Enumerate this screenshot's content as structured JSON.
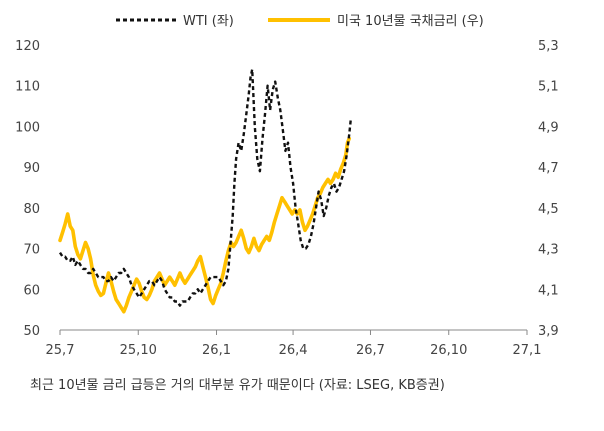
{
  "caption": "최근 10년물 금리 급등은 거의 대부분 유가 때문이다 (자료: LSEG, KB증권)",
  "chart_data": {
    "type": "line",
    "x_ticks": [
      "25,7",
      "25,10",
      "26,1",
      "26,4",
      "26,7",
      "26,10",
      "27,1"
    ],
    "xlim": [
      "25,7",
      "27,1"
    ],
    "y_left": {
      "ticks": [
        "50",
        "60",
        "70",
        "80",
        "90",
        "100",
        "110",
        "120"
      ],
      "ylim": [
        50,
        120
      ]
    },
    "y_right": {
      "ticks": [
        "3,9",
        "4,1",
        "4,3",
        "4,5",
        "4,7",
        "4,9",
        "5,1",
        "5,3"
      ],
      "ylim": [
        3.9,
        5.3
      ]
    },
    "legend_position": "top",
    "grid": false,
    "series": [
      {
        "name": "WTI (좌)",
        "axis": "left",
        "color": "#111111",
        "style": "dashed",
        "points": [
          [
            0,
            69
          ],
          [
            3,
            68
          ],
          [
            6,
            68
          ],
          [
            9,
            67
          ],
          [
            12,
            67
          ],
          [
            15,
            68
          ],
          [
            18,
            66
          ],
          [
            21,
            67
          ],
          [
            24,
            66
          ],
          [
            27,
            65
          ],
          [
            30,
            65
          ],
          [
            33,
            64
          ],
          [
            36,
            64
          ],
          [
            39,
            65
          ],
          [
            42,
            64
          ],
          [
            45,
            63
          ],
          [
            48,
            63
          ],
          [
            51,
            63
          ],
          [
            54,
            62
          ],
          [
            57,
            62
          ],
          [
            60,
            63
          ],
          [
            63,
            62
          ],
          [
            66,
            63
          ],
          [
            69,
            64
          ],
          [
            72,
            64
          ],
          [
            75,
            65
          ],
          [
            78,
            64
          ],
          [
            81,
            63
          ],
          [
            84,
            61
          ],
          [
            87,
            60
          ],
          [
            90,
            59
          ],
          [
            93,
            58
          ],
          [
            96,
            59
          ],
          [
            99,
            60
          ],
          [
            102,
            61
          ],
          [
            105,
            62
          ],
          [
            108,
            62
          ],
          [
            111,
            61
          ],
          [
            114,
            62
          ],
          [
            117,
            63
          ],
          [
            120,
            62
          ],
          [
            123,
            60
          ],
          [
            126,
            59
          ],
          [
            129,
            58
          ],
          [
            132,
            58
          ],
          [
            135,
            57
          ],
          [
            138,
            57
          ],
          [
            141,
            56
          ],
          [
            144,
            57
          ],
          [
            147,
            57
          ],
          [
            150,
            57
          ],
          [
            153,
            58
          ],
          [
            156,
            59
          ],
          [
            159,
            59
          ],
          [
            162,
            60
          ],
          [
            165,
            59
          ],
          [
            168,
            60
          ],
          [
            171,
            61
          ],
          [
            174,
            62
          ],
          [
            177,
            63
          ],
          [
            180,
            63
          ],
          [
            183,
            63
          ],
          [
            186,
            63
          ],
          [
            189,
            62
          ],
          [
            192,
            61
          ],
          [
            195,
            62
          ],
          [
            198,
            65
          ],
          [
            200,
            70
          ],
          [
            203,
            78
          ],
          [
            205,
            86
          ],
          [
            207,
            92
          ],
          [
            210,
            96
          ],
          [
            213,
            94
          ],
          [
            216,
            98
          ],
          [
            219,
            103
          ],
          [
            222,
            108
          ],
          [
            224,
            112
          ],
          [
            226,
            114
          ],
          [
            229,
            100
          ],
          [
            232,
            92
          ],
          [
            235,
            89
          ],
          [
            238,
            97
          ],
          [
            241,
            103
          ],
          [
            244,
            110
          ],
          [
            247,
            104
          ],
          [
            250,
            109
          ],
          [
            253,
            111
          ],
          [
            256,
            107
          ],
          [
            259,
            104
          ],
          [
            262,
            99
          ],
          [
            265,
            94
          ],
          [
            268,
            96
          ],
          [
            271,
            90
          ],
          [
            274,
            86
          ],
          [
            277,
            80
          ],
          [
            280,
            76
          ],
          [
            283,
            72
          ],
          [
            286,
            70
          ],
          [
            289,
            70
          ],
          [
            292,
            71
          ],
          [
            295,
            73
          ],
          [
            298,
            76
          ],
          [
            301,
            80
          ],
          [
            304,
            84
          ],
          [
            307,
            82
          ],
          [
            310,
            78
          ],
          [
            313,
            80
          ],
          [
            316,
            83
          ],
          [
            319,
            85
          ],
          [
            322,
            86
          ],
          [
            325,
            84
          ],
          [
            328,
            85
          ],
          [
            331,
            87
          ],
          [
            334,
            89
          ],
          [
            337,
            93
          ],
          [
            340,
            98
          ],
          [
            342,
            102
          ]
        ]
      },
      {
        "name": "미국 10년물 국채금리 (우)",
        "axis": "right",
        "color": "#FFC000",
        "style": "solid",
        "points": [
          [
            0,
            4.34
          ],
          [
            3,
            4.38
          ],
          [
            6,
            4.42
          ],
          [
            9,
            4.47
          ],
          [
            12,
            4.41
          ],
          [
            15,
            4.39
          ],
          [
            18,
            4.31
          ],
          [
            21,
            4.27
          ],
          [
            24,
            4.25
          ],
          [
            27,
            4.29
          ],
          [
            30,
            4.33
          ],
          [
            33,
            4.3
          ],
          [
            36,
            4.25
          ],
          [
            39,
            4.17
          ],
          [
            42,
            4.12
          ],
          [
            45,
            4.09
          ],
          [
            48,
            4.07
          ],
          [
            51,
            4.08
          ],
          [
            54,
            4.13
          ],
          [
            57,
            4.18
          ],
          [
            60,
            4.14
          ],
          [
            63,
            4.09
          ],
          [
            66,
            4.05
          ],
          [
            69,
            4.03
          ],
          [
            72,
            4.01
          ],
          [
            75,
            3.99
          ],
          [
            78,
            4.02
          ],
          [
            81,
            4.06
          ],
          [
            84,
            4.09
          ],
          [
            87,
            4.12
          ],
          [
            90,
            4.15
          ],
          [
            93,
            4.13
          ],
          [
            96,
            4.09
          ],
          [
            99,
            4.06
          ],
          [
            102,
            4.05
          ],
          [
            105,
            4.07
          ],
          [
            108,
            4.1
          ],
          [
            111,
            4.14
          ],
          [
            114,
            4.16
          ],
          [
            117,
            4.18
          ],
          [
            120,
            4.15
          ],
          [
            123,
            4.12
          ],
          [
            126,
            4.14
          ],
          [
            129,
            4.16
          ],
          [
            132,
            4.14
          ],
          [
            135,
            4.12
          ],
          [
            138,
            4.15
          ],
          [
            141,
            4.18
          ],
          [
            144,
            4.15
          ],
          [
            147,
            4.13
          ],
          [
            150,
            4.15
          ],
          [
            153,
            4.17
          ],
          [
            156,
            4.19
          ],
          [
            159,
            4.21
          ],
          [
            162,
            4.24
          ],
          [
            165,
            4.26
          ],
          [
            168,
            4.21
          ],
          [
            171,
            4.16
          ],
          [
            174,
            4.11
          ],
          [
            177,
            4.05
          ],
          [
            180,
            4.03
          ],
          [
            183,
            4.07
          ],
          [
            186,
            4.1
          ],
          [
            189,
            4.13
          ],
          [
            192,
            4.18
          ],
          [
            195,
            4.24
          ],
          [
            198,
            4.29
          ],
          [
            201,
            4.33
          ],
          [
            204,
            4.31
          ],
          [
            207,
            4.33
          ],
          [
            210,
            4.36
          ],
          [
            213,
            4.39
          ],
          [
            216,
            4.35
          ],
          [
            219,
            4.3
          ],
          [
            222,
            4.28
          ],
          [
            225,
            4.31
          ],
          [
            228,
            4.35
          ],
          [
            231,
            4.31
          ],
          [
            234,
            4.29
          ],
          [
            237,
            4.32
          ],
          [
            240,
            4.34
          ],
          [
            243,
            4.36
          ],
          [
            246,
            4.34
          ],
          [
            249,
            4.38
          ],
          [
            252,
            4.43
          ],
          [
            255,
            4.47
          ],
          [
            258,
            4.51
          ],
          [
            261,
            4.55
          ],
          [
            264,
            4.53
          ],
          [
            267,
            4.51
          ],
          [
            270,
            4.49
          ],
          [
            273,
            4.47
          ],
          [
            276,
            4.49
          ],
          [
            279,
            4.47
          ],
          [
            282,
            4.49
          ],
          [
            285,
            4.43
          ],
          [
            288,
            4.39
          ],
          [
            291,
            4.41
          ],
          [
            294,
            4.44
          ],
          [
            297,
            4.47
          ],
          [
            300,
            4.51
          ],
          [
            303,
            4.55
          ],
          [
            306,
            4.57
          ],
          [
            309,
            4.6
          ],
          [
            312,
            4.62
          ],
          [
            315,
            4.64
          ],
          [
            318,
            4.62
          ],
          [
            321,
            4.64
          ],
          [
            324,
            4.67
          ],
          [
            327,
            4.65
          ],
          [
            330,
            4.69
          ],
          [
            333,
            4.72
          ],
          [
            336,
            4.76
          ],
          [
            338,
            4.82
          ],
          [
            340,
            4.84
          ]
        ]
      }
    ]
  }
}
